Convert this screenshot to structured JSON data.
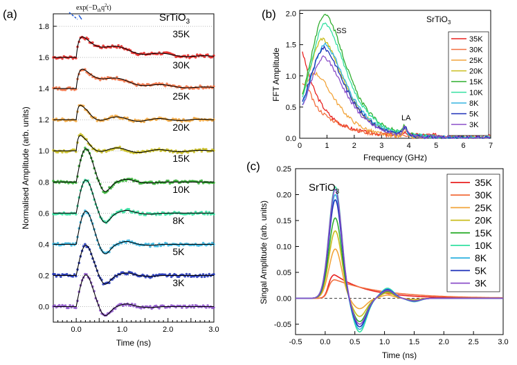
{
  "colors": {
    "35K": "#e8211f",
    "30K": "#f26f3f",
    "25K": "#f2a43a",
    "20K": "#c9bd1c",
    "15K": "#2fae2f",
    "10K": "#33e0a0",
    "8K": "#33b4e0",
    "5K": "#1b2fb8",
    "3K": "#8b4fc9"
  },
  "material": "SrTiO3",
  "material_base": "SrTiO",
  "material_sub": "3",
  "panel_a": {
    "label": "(a)",
    "xlabel": "Time (ns)",
    "ylabel": "Normalised Amplitude (arb. units)",
    "annotation": "exp(−D",
    "annotation_sub": "th",
    "annotation_rest": "q",
    "annotation_sup": "2",
    "annotation_end": "t)",
    "xticks": [
      "0.0",
      "1.0",
      "2.0",
      "3.0"
    ],
    "yticks": [
      "0.0",
      "0.2",
      "0.4",
      "0.6",
      "0.8",
      "1.0",
      "1.2",
      "1.4",
      "1.6",
      "1.8"
    ],
    "temps": [
      "35K",
      "30K",
      "25K",
      "20K",
      "15K",
      "10K",
      "8K",
      "5K",
      "3K"
    ]
  },
  "panel_b": {
    "label": "(b)",
    "xlabel": "Frequency (GHz)",
    "ylabel": "FFT Amplitude",
    "xticks": [
      "0",
      "1",
      "2",
      "3",
      "4",
      "5",
      "6",
      "7"
    ],
    "yticks": [
      "0.0",
      "0.5",
      "1.0",
      "1.5",
      "2.0"
    ],
    "ss_label": "SS",
    "la_label": "LA"
  },
  "panel_c": {
    "label": "(c)",
    "xlabel": "Time (ns)",
    "ylabel": "Singal Amplitude (arb. units)",
    "xticks": [
      "-0.5",
      "0.0",
      "0.5",
      "1.0",
      "1.5",
      "2.0",
      "2.5",
      "3.0"
    ],
    "yticks": [
      "-0.05",
      "0.00",
      "0.05",
      "0.10",
      "0.15",
      "0.20",
      "0.25"
    ]
  },
  "chart_data": [
    {
      "type": "line",
      "panel": "a",
      "xlabel": "Time (ns)",
      "ylabel": "Normalised Amplitude (arb. units)",
      "xlim": [
        -0.5,
        3.0
      ],
      "ylim": [
        -0.1,
        1.88
      ],
      "series": [
        {
          "name": "35K",
          "offset": 1.6,
          "peak": 0.18,
          "shape": "slow"
        },
        {
          "name": "30K",
          "offset": 1.4,
          "peak": 0.17,
          "shape": "slow"
        },
        {
          "name": "25K",
          "offset": 1.2,
          "peak": 0.18,
          "shape": "mid"
        },
        {
          "name": "20K",
          "offset": 1.0,
          "peak": 0.19,
          "shape": "mid"
        },
        {
          "name": "15K",
          "offset": 0.8,
          "peak": 0.22,
          "shape": "fast"
        },
        {
          "name": "10K",
          "offset": 0.6,
          "peak": 0.22,
          "shape": "fast"
        },
        {
          "name": "8K",
          "offset": 0.4,
          "peak": 0.22,
          "shape": "fast"
        },
        {
          "name": "5K",
          "offset": 0.2,
          "peak": 0.2,
          "shape": "fast"
        },
        {
          "name": "3K",
          "offset": 0.0,
          "peak": 0.21,
          "shape": "fast"
        }
      ]
    },
    {
      "type": "line",
      "panel": "b",
      "xlabel": "Frequency (GHz)",
      "ylabel": "FFT Amplitude",
      "xlim": [
        0,
        7
      ],
      "ylim": [
        0,
        2.05
      ],
      "series": [
        {
          "name": "35K",
          "peak_f": 0.2,
          "peak_a": 1.35
        },
        {
          "name": "30K",
          "peak_f": 0.3,
          "peak_a": 0.8
        },
        {
          "name": "25K",
          "peak_f": 0.5,
          "peak_a": 1.05
        },
        {
          "name": "20K",
          "peak_f": 0.8,
          "peak_a": 1.6
        },
        {
          "name": "15K",
          "peak_f": 0.9,
          "peak_a": 2.0
        },
        {
          "name": "10K",
          "peak_f": 0.9,
          "peak_a": 1.85
        },
        {
          "name": "8K",
          "peak_f": 0.9,
          "peak_a": 1.5
        },
        {
          "name": "5K",
          "peak_f": 0.85,
          "peak_a": 1.45
        },
        {
          "name": "3K",
          "peak_f": 0.85,
          "peak_a": 1.3
        }
      ]
    },
    {
      "type": "line",
      "panel": "c",
      "xlabel": "Time (ns)",
      "ylabel": "Singal Amplitude (arb. units)",
      "xlim": [
        -0.5,
        3.0
      ],
      "ylim": [
        -0.07,
        0.25
      ],
      "series": [
        {
          "name": "35K",
          "peak": 0.047,
          "dip": 0.0
        },
        {
          "name": "30K",
          "peak": 0.037,
          "dip": 0.0
        },
        {
          "name": "25K",
          "peak": 0.095,
          "dip": -0.02
        },
        {
          "name": "20K",
          "peak": 0.13,
          "dip": -0.035
        },
        {
          "name": "15K",
          "peak": 0.155,
          "dip": -0.045
        },
        {
          "name": "10K",
          "peak": 0.215,
          "dip": -0.065
        },
        {
          "name": "8K",
          "peak": 0.2,
          "dip": -0.06
        },
        {
          "name": "5K",
          "peak": 0.19,
          "dip": -0.055
        },
        {
          "name": "3K",
          "peak": 0.21,
          "dip": -0.05
        }
      ]
    }
  ]
}
